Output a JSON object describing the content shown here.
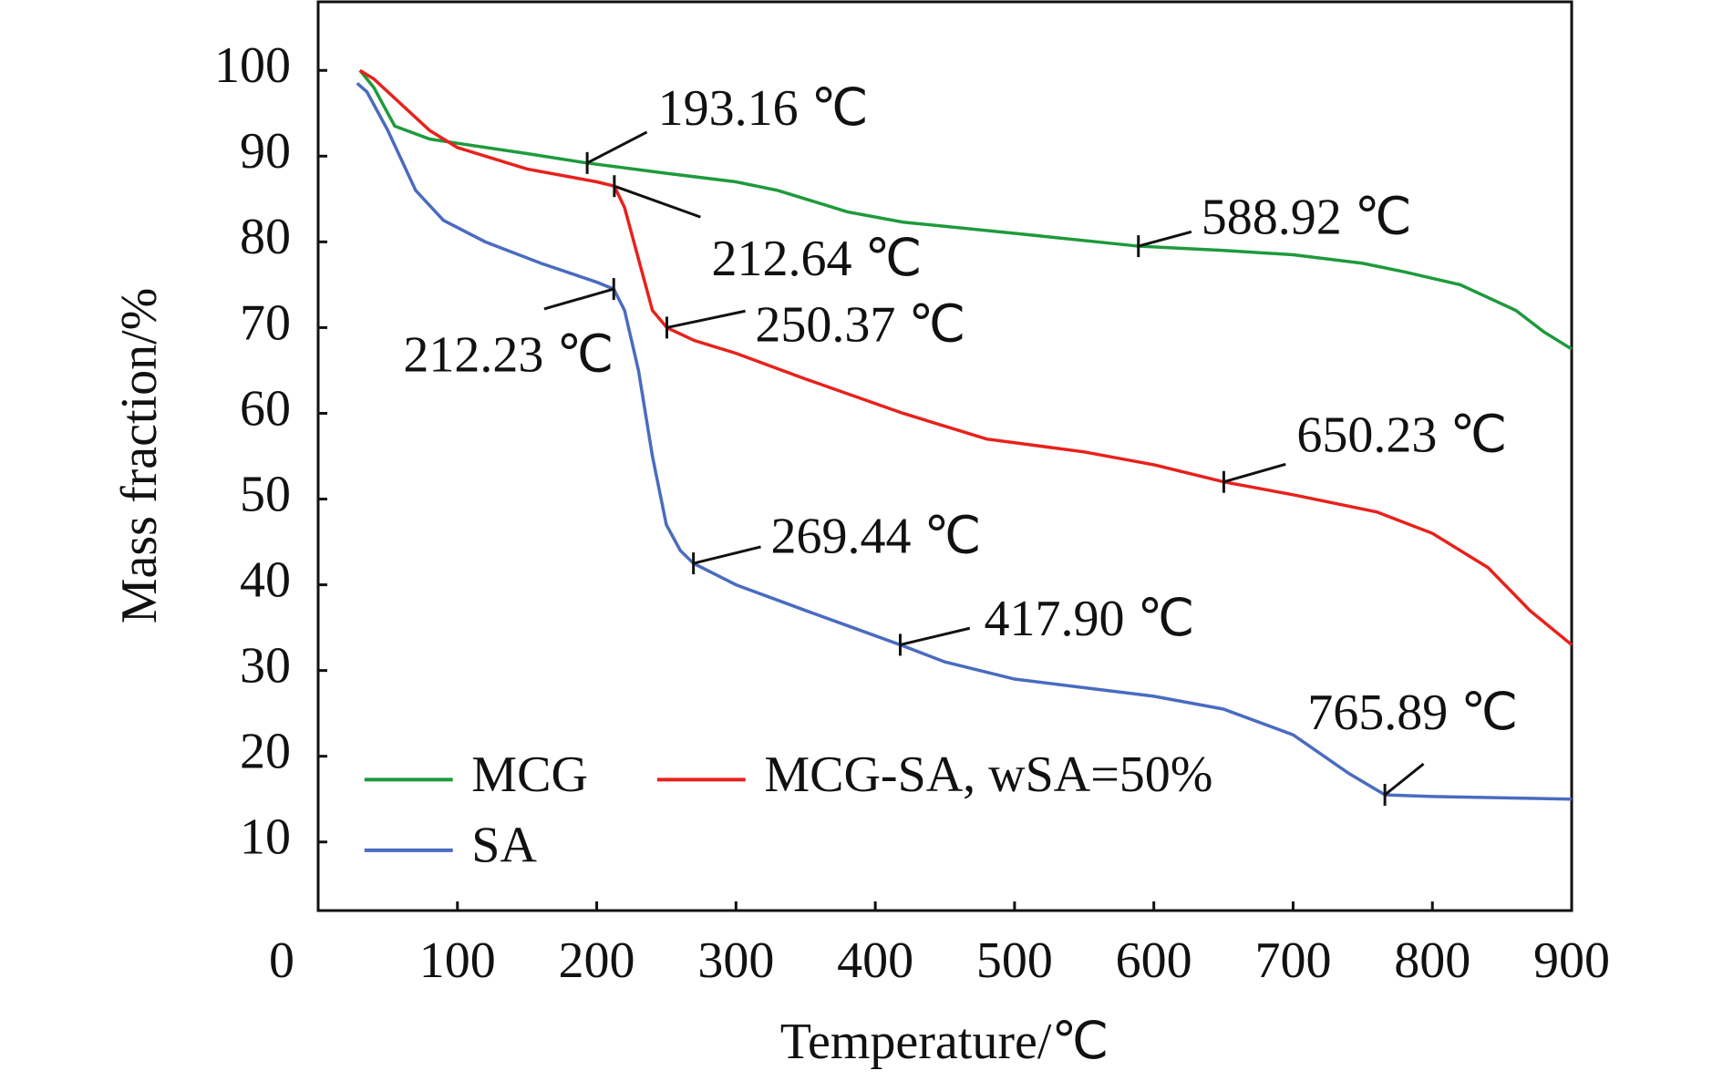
{
  "chart_data": {
    "type": "line",
    "xlabel": "Temperature/℃",
    "ylabel": "Mass fraction/%",
    "xlim": [
      0,
      900
    ],
    "xticks": [
      0,
      100,
      200,
      300,
      400,
      500,
      600,
      700,
      800,
      900
    ],
    "ylim": [
      2,
      108
    ],
    "yticks": [
      10,
      20,
      30,
      40,
      50,
      60,
      70,
      80,
      90,
      100
    ],
    "series": [
      {
        "name": "MCG",
        "color": "#1e9a3c",
        "x": [
          30,
          40,
          55,
          80,
          100,
          150,
          193,
          250,
          300,
          330,
          380,
          420,
          500,
          588.92,
          650,
          700,
          750,
          780,
          820,
          860,
          880,
          900
        ],
        "values": [
          100,
          98,
          93.5,
          92,
          91.5,
          90.3,
          89.2,
          88,
          87,
          86,
          83.5,
          82.3,
          81,
          79.5,
          79,
          78.5,
          77.5,
          76.5,
          75,
          72,
          69.5,
          67.5
        ]
      },
      {
        "name": "MCG-SA, wSA=50%",
        "color": "#e8211c",
        "x": [
          30,
          40,
          60,
          80,
          100,
          150,
          200,
          212.64,
          220,
          230,
          240,
          250.37,
          270,
          300,
          350,
          420,
          480,
          550,
          600,
          650.23,
          700,
          760,
          800,
          840,
          870,
          900
        ],
        "values": [
          100,
          99,
          96,
          93,
          91,
          88.5,
          87,
          86.5,
          84,
          78,
          72,
          70,
          68.5,
          67,
          64,
          60,
          57,
          55.5,
          54,
          52,
          50.5,
          48.5,
          46,
          42,
          37,
          33
        ]
      },
      {
        "name": "SA",
        "color": "#4a6bbf",
        "x": [
          28,
          35,
          50,
          70,
          90,
          120,
          160,
          200,
          212.23,
          220,
          230,
          240,
          250,
          260,
          269.44,
          300,
          350,
          417.9,
          450,
          500,
          550,
          600,
          650,
          700,
          740,
          765.89,
          800,
          900
        ],
        "values": [
          98.5,
          97.5,
          93,
          86,
          82.5,
          80,
          77.5,
          75.3,
          74.5,
          72,
          65,
          55,
          47,
          44,
          42.5,
          40,
          37,
          33,
          31,
          29,
          28,
          27,
          25.5,
          22.5,
          18,
          15.5,
          15.3,
          15
        ]
      }
    ],
    "annotations": [
      {
        "text": "193.16 ℃",
        "x": 193.16,
        "y": 89.2
      },
      {
        "text": "212.64 ℃",
        "x": 212.64,
        "y": 86.5
      },
      {
        "text": "212.23 ℃",
        "x": 212.23,
        "y": 74.5
      },
      {
        "text": "250.37 ℃",
        "x": 250.37,
        "y": 70
      },
      {
        "text": "588.92 ℃",
        "x": 588.92,
        "y": 79.5
      },
      {
        "text": "650.23 ℃",
        "x": 650.23,
        "y": 52
      },
      {
        "text": "269.44 ℃",
        "x": 269.44,
        "y": 42.5
      },
      {
        "text": "417.90 ℃",
        "x": 417.9,
        "y": 33
      },
      {
        "text": "765.89 ℃",
        "x": 765.89,
        "y": 15.5
      }
    ]
  }
}
